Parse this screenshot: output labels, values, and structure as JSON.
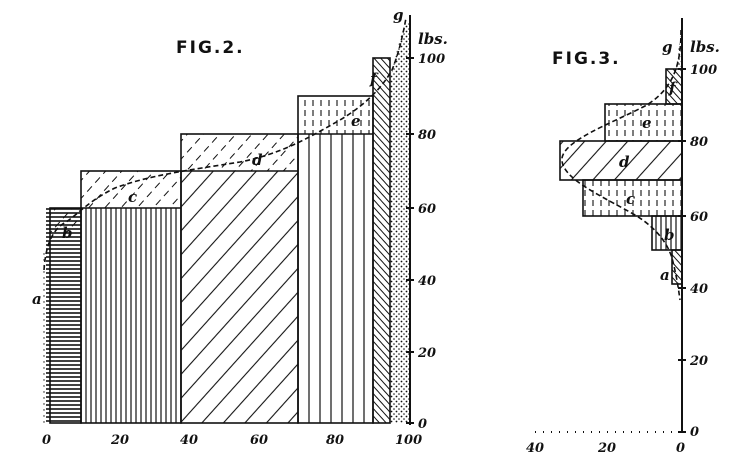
{
  "fig2": {
    "title": "FIG.2.",
    "unit": "lbs.",
    "y_ticks": [
      "0",
      "20",
      "40",
      "60",
      "80",
      "100"
    ],
    "x_ticks": [
      "0",
      "20",
      "40",
      "60",
      "80",
      "100"
    ],
    "labels": {
      "a": "a",
      "b": "b",
      "c": "c",
      "d": "d",
      "e": "e",
      "f": "f",
      "g": "g"
    }
  },
  "fig3": {
    "title": "FIG.3.",
    "unit": "lbs.",
    "y_ticks": [
      "0",
      "20",
      "40",
      "60",
      "80",
      "100"
    ],
    "x_ticks": [
      "40",
      "20",
      "0"
    ],
    "labels": {
      "a": "a",
      "b": "b",
      "c": "c",
      "d": "d",
      "e": "e",
      "f": "f",
      "g": "g"
    }
  }
}
